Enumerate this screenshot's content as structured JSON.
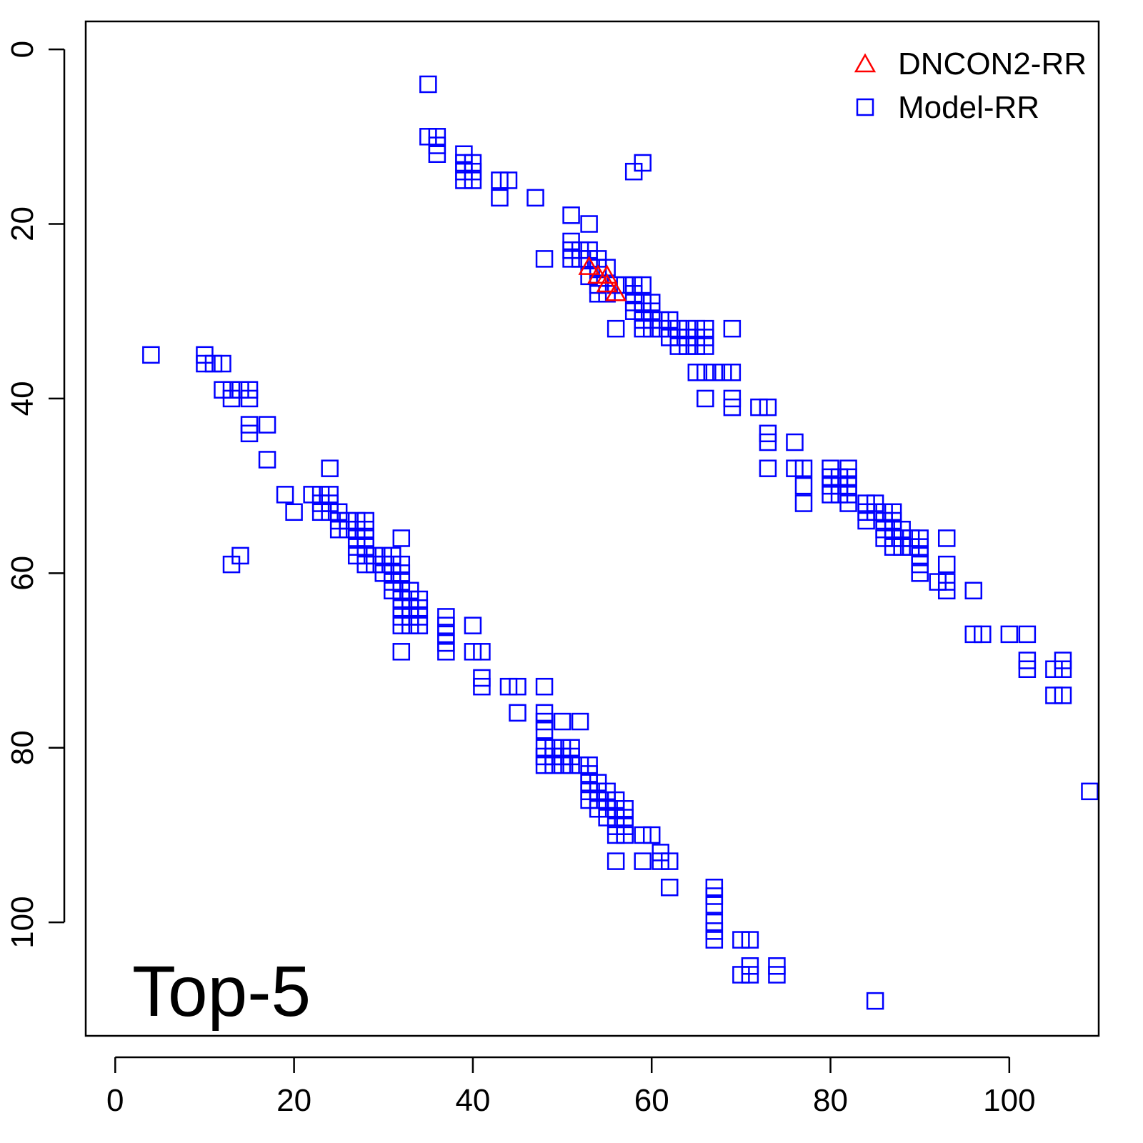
{
  "chart_data": {
    "type": "scatter",
    "title": "",
    "xlabel": "",
    "ylabel": "",
    "xlim": [
      -3.3,
      110
    ],
    "ylim": [
      -3.2,
      113
    ],
    "y_reversed": true,
    "grid": false,
    "legend_position": "top-right",
    "x_ticks": [
      0,
      20,
      40,
      60,
      80,
      100
    ],
    "y_ticks": [
      0,
      20,
      40,
      60,
      80,
      100
    ],
    "x_tick_labels": [
      "0",
      "20",
      "40",
      "60",
      "80",
      "100"
    ],
    "y_tick_labels": [
      "0",
      "20",
      "40",
      "60",
      "80",
      "100"
    ],
    "annotation": "Top-5",
    "series": [
      {
        "name": "DNCON2-RR",
        "marker": "triangle",
        "color": "#ff0000",
        "points": [
          [
            53,
            25
          ],
          [
            54,
            26
          ],
          [
            55,
            26
          ],
          [
            55,
            27
          ],
          [
            56,
            28
          ]
        ]
      },
      {
        "name": "Model-RR",
        "marker": "square",
        "color": "#0000ff",
        "points": [
          [
            35,
            4
          ],
          [
            35,
            10
          ],
          [
            36,
            10
          ],
          [
            36,
            11
          ],
          [
            36,
            12
          ],
          [
            39,
            12
          ],
          [
            39,
            13
          ],
          [
            39,
            14
          ],
          [
            39,
            15
          ],
          [
            40,
            13
          ],
          [
            40,
            14
          ],
          [
            40,
            15
          ],
          [
            43,
            15
          ],
          [
            43,
            17
          ],
          [
            44,
            15
          ],
          [
            47,
            17
          ],
          [
            58,
            14
          ],
          [
            59,
            13
          ],
          [
            51,
            19
          ],
          [
            53,
            20
          ],
          [
            48,
            24
          ],
          [
            51,
            22
          ],
          [
            51,
            23
          ],
          [
            51,
            24
          ],
          [
            52,
            23
          ],
          [
            52,
            24
          ],
          [
            53,
            23
          ],
          [
            53,
            24
          ],
          [
            54,
            24
          ],
          [
            54,
            25
          ],
          [
            55,
            25
          ],
          [
            53,
            26
          ],
          [
            54,
            27
          ],
          [
            54,
            28
          ],
          [
            55,
            28
          ],
          [
            56,
            27
          ],
          [
            57,
            27
          ],
          [
            58,
            27
          ],
          [
            59,
            27
          ],
          [
            58,
            28
          ],
          [
            58,
            29
          ],
          [
            58,
            30
          ],
          [
            59,
            29
          ],
          [
            59,
            30
          ],
          [
            59,
            31
          ],
          [
            59,
            32
          ],
          [
            60,
            29
          ],
          [
            60,
            30
          ],
          [
            60,
            31
          ],
          [
            60,
            32
          ],
          [
            61,
            31
          ],
          [
            61,
            32
          ],
          [
            62,
            31
          ],
          [
            62,
            32
          ],
          [
            62,
            33
          ],
          [
            63,
            32
          ],
          [
            63,
            33
          ],
          [
            63,
            34
          ],
          [
            64,
            32
          ],
          [
            64,
            33
          ],
          [
            64,
            34
          ],
          [
            65,
            32
          ],
          [
            65,
            33
          ],
          [
            65,
            34
          ],
          [
            66,
            32
          ],
          [
            66,
            33
          ],
          [
            66,
            34
          ],
          [
            56,
            32
          ],
          [
            69,
            32
          ],
          [
            65,
            37
          ],
          [
            66,
            37
          ],
          [
            67,
            37
          ],
          [
            68,
            37
          ],
          [
            69,
            37
          ],
          [
            66,
            40
          ],
          [
            69,
            40
          ],
          [
            69,
            41
          ],
          [
            72,
            41
          ],
          [
            73,
            41
          ],
          [
            73,
            44
          ],
          [
            73,
            45
          ],
          [
            73,
            48
          ],
          [
            76,
            45
          ],
          [
            76,
            48
          ],
          [
            77,
            48
          ],
          [
            77,
            50
          ],
          [
            77,
            52
          ],
          [
            80,
            48
          ],
          [
            80,
            49
          ],
          [
            80,
            50
          ],
          [
            80,
            51
          ],
          [
            81,
            49
          ],
          [
            81,
            50
          ],
          [
            81,
            51
          ],
          [
            82,
            48
          ],
          [
            82,
            49
          ],
          [
            82,
            50
          ],
          [
            82,
            51
          ],
          [
            82,
            52
          ],
          [
            84,
            52
          ],
          [
            84,
            53
          ],
          [
            84,
            54
          ],
          [
            85,
            52
          ],
          [
            85,
            53
          ],
          [
            86,
            53
          ],
          [
            86,
            54
          ],
          [
            86,
            55
          ],
          [
            86,
            56
          ],
          [
            87,
            53
          ],
          [
            87,
            54
          ],
          [
            87,
            55
          ],
          [
            87,
            56
          ],
          [
            87,
            57
          ],
          [
            88,
            55
          ],
          [
            88,
            56
          ],
          [
            88,
            57
          ],
          [
            89,
            56
          ],
          [
            89,
            57
          ],
          [
            90,
            56
          ],
          [
            90,
            57
          ],
          [
            90,
            58
          ],
          [
            90,
            59
          ],
          [
            90,
            60
          ],
          [
            92,
            61
          ],
          [
            93,
            56
          ],
          [
            93,
            59
          ],
          [
            93,
            61
          ],
          [
            93,
            62
          ],
          [
            96,
            62
          ],
          [
            96,
            67
          ],
          [
            97,
            67
          ],
          [
            100,
            67
          ],
          [
            102,
            67
          ],
          [
            102,
            70
          ],
          [
            102,
            71
          ],
          [
            105,
            71
          ],
          [
            105,
            74
          ],
          [
            106,
            70
          ],
          [
            106,
            71
          ],
          [
            106,
            74
          ],
          [
            109,
            85
          ],
          [
            4,
            35
          ],
          [
            10,
            35
          ],
          [
            10,
            36
          ],
          [
            11,
            36
          ],
          [
            12,
            36
          ],
          [
            12,
            39
          ],
          [
            13,
            39
          ],
          [
            13,
            40
          ],
          [
            14,
            39
          ],
          [
            15,
            39
          ],
          [
            15,
            40
          ],
          [
            15,
            43
          ],
          [
            15,
            44
          ],
          [
            17,
            43
          ],
          [
            17,
            47
          ],
          [
            19,
            51
          ],
          [
            20,
            53
          ],
          [
            13,
            59
          ],
          [
            14,
            58
          ],
          [
            24,
            48
          ],
          [
            22,
            51
          ],
          [
            23,
            51
          ],
          [
            23,
            52
          ],
          [
            23,
            53
          ],
          [
            24,
            51
          ],
          [
            24,
            52
          ],
          [
            24,
            53
          ],
          [
            25,
            53
          ],
          [
            25,
            54
          ],
          [
            25,
            55
          ],
          [
            26,
            54
          ],
          [
            26,
            55
          ],
          [
            27,
            54
          ],
          [
            27,
            55
          ],
          [
            27,
            56
          ],
          [
            27,
            57
          ],
          [
            27,
            58
          ],
          [
            28,
            54
          ],
          [
            28,
            55
          ],
          [
            28,
            56
          ],
          [
            28,
            57
          ],
          [
            28,
            58
          ],
          [
            28,
            59
          ],
          [
            29,
            58
          ],
          [
            29,
            59
          ],
          [
            30,
            58
          ],
          [
            30,
            59
          ],
          [
            30,
            60
          ],
          [
            31,
            58
          ],
          [
            31,
            59
          ],
          [
            31,
            60
          ],
          [
            31,
            61
          ],
          [
            31,
            62
          ],
          [
            32,
            56
          ],
          [
            32,
            59
          ],
          [
            32,
            60
          ],
          [
            32,
            61
          ],
          [
            32,
            62
          ],
          [
            32,
            63
          ],
          [
            32,
            64
          ],
          [
            32,
            65
          ],
          [
            32,
            66
          ],
          [
            33,
            62
          ],
          [
            33,
            63
          ],
          [
            33,
            64
          ],
          [
            33,
            65
          ],
          [
            33,
            66
          ],
          [
            34,
            63
          ],
          [
            34,
            64
          ],
          [
            34,
            65
          ],
          [
            34,
            66
          ],
          [
            32,
            69
          ],
          [
            37,
            65
          ],
          [
            37,
            66
          ],
          [
            37,
            67
          ],
          [
            37,
            68
          ],
          [
            37,
            69
          ],
          [
            40,
            66
          ],
          [
            40,
            69
          ],
          [
            41,
            69
          ],
          [
            41,
            72
          ],
          [
            41,
            73
          ],
          [
            44,
            73
          ],
          [
            45,
            73
          ],
          [
            45,
            76
          ],
          [
            48,
            73
          ],
          [
            48,
            76
          ],
          [
            48,
            77
          ],
          [
            48,
            78
          ],
          [
            50,
            77
          ],
          [
            52,
            77
          ],
          [
            48,
            80
          ],
          [
            48,
            81
          ],
          [
            48,
            82
          ],
          [
            49,
            80
          ],
          [
            49,
            81
          ],
          [
            49,
            82
          ],
          [
            50,
            80
          ],
          [
            50,
            81
          ],
          [
            50,
            82
          ],
          [
            51,
            80
          ],
          [
            51,
            81
          ],
          [
            51,
            82
          ],
          [
            52,
            82
          ],
          [
            53,
            82
          ],
          [
            53,
            83
          ],
          [
            53,
            84
          ],
          [
            53,
            85
          ],
          [
            53,
            86
          ],
          [
            54,
            84
          ],
          [
            54,
            85
          ],
          [
            54,
            86
          ],
          [
            54,
            87
          ],
          [
            55,
            85
          ],
          [
            55,
            86
          ],
          [
            55,
            87
          ],
          [
            55,
            88
          ],
          [
            56,
            86
          ],
          [
            56,
            87
          ],
          [
            56,
            88
          ],
          [
            56,
            89
          ],
          [
            56,
            90
          ],
          [
            57,
            87
          ],
          [
            57,
            88
          ],
          [
            57,
            89
          ],
          [
            57,
            90
          ],
          [
            56,
            93
          ],
          [
            59,
            90
          ],
          [
            60,
            90
          ],
          [
            59,
            93
          ],
          [
            61,
            92
          ],
          [
            61,
            93
          ],
          [
            62,
            93
          ],
          [
            62,
            96
          ],
          [
            67,
            96
          ],
          [
            67,
            97
          ],
          [
            67,
            98
          ],
          [
            67,
            100
          ],
          [
            67,
            101
          ],
          [
            67,
            102
          ],
          [
            70,
            102
          ],
          [
            71,
            102
          ],
          [
            70,
            106
          ],
          [
            71,
            105
          ],
          [
            71,
            106
          ],
          [
            74,
            105
          ],
          [
            74,
            106
          ],
          [
            85,
            109
          ]
        ]
      }
    ]
  }
}
